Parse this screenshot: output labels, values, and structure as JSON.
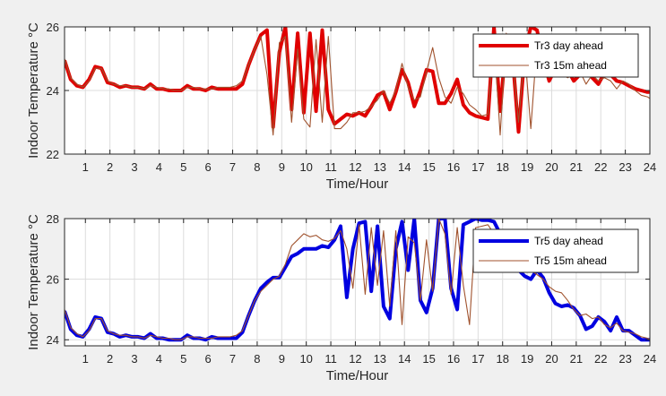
{
  "chart_data": [
    {
      "type": "line",
      "xlabel": "Time/Hour",
      "ylabel": "Indoor Temperature °C",
      "xlim": [
        0.15,
        24
      ],
      "ylim": [
        22,
        26
      ],
      "xticks": [
        1,
        2,
        3,
        4,
        5,
        6,
        7,
        8,
        9,
        10,
        11,
        12,
        13,
        14,
        15,
        16,
        17,
        18,
        19,
        20,
        21,
        22,
        23,
        24
      ],
      "yticks": [
        22,
        24,
        26
      ],
      "grid": true,
      "legend_position": "top-right",
      "series": [
        {
          "name": "Tr3 day ahead",
          "color": "#e00000",
          "width": "thick",
          "x": [
            0.15,
            0.4,
            0.65,
            0.9,
            1.15,
            1.4,
            1.65,
            1.9,
            2.15,
            2.4,
            2.65,
            2.9,
            3.15,
            3.4,
            3.65,
            3.9,
            4.15,
            4.4,
            4.65,
            4.9,
            5.15,
            5.4,
            5.65,
            5.9,
            6.15,
            6.4,
            6.65,
            6.9,
            7.15,
            7.4,
            7.65,
            7.9,
            8.15,
            8.4,
            8.65,
            8.9,
            9.15,
            9.4,
            9.65,
            9.9,
            10.15,
            10.4,
            10.65,
            10.9,
            11.15,
            11.4,
            11.65,
            11.9,
            12.15,
            12.4,
            12.65,
            12.9,
            13.15,
            13.4,
            13.65,
            13.9,
            14.15,
            14.4,
            14.65,
            14.9,
            15.15,
            15.4,
            15.65,
            15.9,
            16.15,
            16.4,
            16.65,
            16.9,
            17.15,
            17.4,
            17.65,
            17.9,
            18.15,
            18.4,
            18.65,
            18.9,
            19.15,
            19.4,
            19.65,
            19.9,
            20.15,
            20.4,
            20.65,
            20.9,
            21.15,
            21.4,
            21.65,
            21.9,
            22.15,
            22.4,
            22.65,
            22.9,
            23.15,
            23.4,
            23.65,
            23.9,
            24.0
          ],
          "y": [
            24.95,
            24.35,
            24.15,
            24.1,
            24.35,
            24.75,
            24.7,
            24.25,
            24.2,
            24.1,
            24.15,
            24.1,
            24.1,
            24.05,
            24.2,
            24.05,
            24.05,
            24.0,
            24.0,
            24.0,
            24.15,
            24.05,
            24.05,
            24.0,
            24.1,
            24.05,
            24.05,
            24.05,
            24.05,
            24.2,
            24.8,
            25.3,
            25.75,
            25.9,
            22.85,
            25.2,
            26.0,
            23.4,
            25.8,
            23.3,
            25.8,
            23.35,
            25.9,
            23.4,
            22.95,
            23.1,
            23.25,
            23.2,
            23.3,
            23.2,
            23.5,
            23.85,
            23.95,
            23.4,
            23.95,
            24.65,
            24.25,
            23.5,
            24.0,
            24.65,
            24.6,
            23.6,
            23.6,
            23.9,
            24.35,
            23.55,
            23.3,
            23.2,
            23.15,
            23.1,
            26.0,
            23.35,
            25.6,
            25.1,
            22.7,
            25.2,
            26.0,
            25.9,
            25.0,
            24.3,
            24.7,
            24.7,
            24.65,
            24.3,
            24.5,
            24.65,
            24.4,
            24.2,
            24.55,
            24.5,
            24.3,
            24.25,
            24.15,
            24.05,
            24.0,
            23.95,
            23.95
          ]
        },
        {
          "name": "Tr3 15m ahead",
          "color": "#a0522d",
          "width": "thin",
          "x": [
            0.15,
            0.4,
            0.65,
            0.9,
            1.15,
            1.4,
            1.65,
            1.9,
            2.15,
            2.4,
            2.65,
            2.9,
            3.15,
            3.4,
            3.65,
            3.9,
            4.15,
            4.4,
            4.65,
            4.9,
            5.15,
            5.4,
            5.65,
            5.9,
            6.15,
            6.4,
            6.65,
            6.9,
            7.15,
            7.4,
            7.65,
            7.9,
            8.15,
            8.4,
            8.65,
            8.9,
            9.15,
            9.4,
            9.65,
            9.9,
            10.15,
            10.4,
            10.65,
            10.9,
            11.15,
            11.4,
            11.65,
            11.9,
            12.15,
            12.4,
            12.65,
            12.9,
            13.15,
            13.4,
            13.65,
            13.9,
            14.15,
            14.4,
            14.65,
            14.9,
            15.15,
            15.4,
            15.65,
            15.9,
            16.15,
            16.4,
            16.65,
            16.9,
            17.15,
            17.4,
            17.65,
            17.9,
            18.15,
            18.4,
            18.65,
            18.9,
            19.15,
            19.4,
            19.65,
            19.9,
            20.15,
            20.4,
            20.65,
            20.9,
            21.15,
            21.4,
            21.65,
            21.9,
            22.15,
            22.4,
            22.65,
            22.9,
            23.15,
            23.4,
            23.65,
            23.9,
            24.0
          ],
          "y": [
            25.0,
            24.4,
            24.2,
            24.1,
            24.3,
            24.7,
            24.7,
            24.3,
            24.2,
            24.15,
            24.15,
            24.1,
            24.1,
            24.05,
            24.15,
            24.1,
            24.05,
            24.05,
            24.0,
            24.0,
            24.1,
            24.1,
            24.05,
            24.05,
            24.05,
            24.1,
            24.1,
            24.1,
            24.15,
            24.3,
            24.8,
            25.3,
            25.7,
            24.5,
            22.6,
            25.5,
            25.7,
            23.0,
            25.3,
            23.1,
            22.85,
            25.6,
            23.0,
            25.7,
            22.8,
            22.8,
            23.0,
            23.3,
            23.3,
            23.35,
            23.5,
            23.7,
            24.0,
            23.6,
            24.0,
            24.85,
            24.1,
            23.7,
            23.8,
            24.6,
            25.35,
            24.4,
            23.8,
            23.6,
            24.1,
            23.9,
            23.55,
            23.4,
            23.2,
            23.25,
            25.7,
            22.6,
            25.8,
            25.0,
            23.0,
            25.2,
            22.8,
            25.5,
            24.7,
            24.4,
            24.5,
            24.5,
            24.4,
            24.5,
            24.6,
            24.2,
            24.5,
            24.3,
            24.4,
            24.3,
            24.05,
            24.3,
            24.2,
            24.0,
            23.85,
            23.8,
            23.75
          ]
        }
      ]
    },
    {
      "type": "line",
      "xlabel": "Time/Hour",
      "ylabel": "Indoor Temperature °C",
      "xlim": [
        0.15,
        24
      ],
      "ylim": [
        23.8,
        28
      ],
      "xticks": [
        1,
        2,
        3,
        4,
        5,
        6,
        7,
        8,
        9,
        10,
        11,
        12,
        13,
        14,
        15,
        16,
        17,
        18,
        19,
        20,
        21,
        22,
        23,
        24
      ],
      "yticks": [
        24,
        26,
        28
      ],
      "grid": true,
      "legend_position": "top-right",
      "series": [
        {
          "name": "Tr5 day ahead",
          "color": "#0000e0",
          "width": "thick",
          "x": [
            0.15,
            0.4,
            0.65,
            0.9,
            1.15,
            1.4,
            1.65,
            1.9,
            2.15,
            2.4,
            2.65,
            2.9,
            3.15,
            3.4,
            3.65,
            3.9,
            4.15,
            4.4,
            4.65,
            4.9,
            5.15,
            5.4,
            5.65,
            5.9,
            6.15,
            6.4,
            6.65,
            6.9,
            7.15,
            7.4,
            7.65,
            7.9,
            8.15,
            8.4,
            8.65,
            8.9,
            9.15,
            9.4,
            9.65,
            9.9,
            10.15,
            10.4,
            10.65,
            10.9,
            11.15,
            11.4,
            11.65,
            11.9,
            12.15,
            12.4,
            12.65,
            12.9,
            13.15,
            13.4,
            13.65,
            13.9,
            14.15,
            14.4,
            14.65,
            14.9,
            15.15,
            15.4,
            15.65,
            15.9,
            16.15,
            16.4,
            16.65,
            16.9,
            17.15,
            17.4,
            17.65,
            17.9,
            18.15,
            18.4,
            18.65,
            18.9,
            19.15,
            19.4,
            19.65,
            19.9,
            20.15,
            20.4,
            20.65,
            20.9,
            21.15,
            21.4,
            21.65,
            21.9,
            22.15,
            22.4,
            22.65,
            22.9,
            23.15,
            23.4,
            23.65,
            23.9,
            24.0
          ],
          "y": [
            24.95,
            24.35,
            24.15,
            24.1,
            24.35,
            24.75,
            24.7,
            24.25,
            24.2,
            24.1,
            24.15,
            24.1,
            24.1,
            24.05,
            24.2,
            24.05,
            24.05,
            24.0,
            24.0,
            24.0,
            24.15,
            24.05,
            24.05,
            24.0,
            24.1,
            24.05,
            24.05,
            24.05,
            24.05,
            24.25,
            24.8,
            25.3,
            25.7,
            25.9,
            26.05,
            26.05,
            26.4,
            26.75,
            26.85,
            27.0,
            27.0,
            27.0,
            27.1,
            27.05,
            27.3,
            27.75,
            25.4,
            27.0,
            27.85,
            27.9,
            25.6,
            27.75,
            25.1,
            24.7,
            27.0,
            27.9,
            26.3,
            28.0,
            25.3,
            24.9,
            25.7,
            28.0,
            28.0,
            25.7,
            25.0,
            27.8,
            27.9,
            28.0,
            27.95,
            27.95,
            27.9,
            27.5,
            27.2,
            26.7,
            26.3,
            26.1,
            26.0,
            26.3,
            26.05,
            25.55,
            25.2,
            25.1,
            25.15,
            25.05,
            24.8,
            24.35,
            24.45,
            24.75,
            24.6,
            24.3,
            24.75,
            24.3,
            24.3,
            24.15,
            24.0,
            24.0,
            24.0
          ]
        },
        {
          "name": "Tr5 15m ahead",
          "color": "#a0522d",
          "width": "thin",
          "x": [
            0.15,
            0.4,
            0.65,
            0.9,
            1.15,
            1.4,
            1.65,
            1.9,
            2.15,
            2.4,
            2.65,
            2.9,
            3.15,
            3.4,
            3.65,
            3.9,
            4.15,
            4.4,
            4.65,
            4.9,
            5.15,
            5.4,
            5.65,
            5.9,
            6.15,
            6.4,
            6.65,
            6.9,
            7.15,
            7.4,
            7.65,
            7.9,
            8.15,
            8.4,
            8.65,
            8.9,
            9.15,
            9.4,
            9.65,
            9.9,
            10.15,
            10.4,
            10.65,
            10.9,
            11.15,
            11.4,
            11.65,
            11.9,
            12.15,
            12.4,
            12.65,
            12.9,
            13.15,
            13.4,
            13.65,
            13.9,
            14.15,
            14.4,
            14.65,
            14.9,
            15.15,
            15.4,
            15.65,
            15.9,
            16.15,
            16.4,
            16.65,
            16.9,
            17.15,
            17.4,
            17.65,
            17.9,
            18.15,
            18.4,
            18.65,
            18.9,
            19.15,
            19.4,
            19.65,
            19.9,
            20.15,
            20.4,
            20.65,
            20.9,
            21.15,
            21.4,
            21.65,
            21.9,
            22.15,
            22.4,
            22.65,
            22.9,
            23.15,
            23.4,
            23.65,
            23.9,
            24.0
          ],
          "y": [
            25.0,
            24.4,
            24.2,
            24.1,
            24.3,
            24.7,
            24.7,
            24.3,
            24.2,
            24.15,
            24.15,
            24.1,
            24.1,
            24.05,
            24.15,
            24.1,
            24.05,
            24.05,
            24.0,
            24.0,
            24.1,
            24.1,
            24.05,
            24.05,
            24.05,
            24.1,
            24.1,
            24.1,
            24.15,
            24.3,
            24.8,
            25.3,
            25.6,
            25.8,
            26.0,
            26.1,
            26.5,
            27.1,
            27.3,
            27.5,
            27.4,
            27.45,
            27.3,
            27.25,
            27.35,
            27.6,
            27.0,
            25.7,
            27.8,
            25.5,
            27.7,
            25.8,
            27.6,
            25.1,
            27.6,
            24.5,
            27.4,
            27.2,
            25.3,
            27.3,
            25.6,
            28.0,
            27.5,
            25.5,
            27.7,
            25.8,
            24.5,
            27.7,
            27.75,
            27.8,
            27.5,
            27.3,
            27.0,
            26.7,
            26.4,
            26.35,
            26.3,
            26.15,
            26.0,
            25.75,
            25.6,
            25.55,
            25.3,
            25.0,
            24.8,
            24.85,
            24.7,
            24.75,
            24.5,
            24.4,
            24.55,
            24.3,
            24.25,
            24.2,
            24.1,
            24.05,
            24.0
          ]
        }
      ]
    }
  ]
}
